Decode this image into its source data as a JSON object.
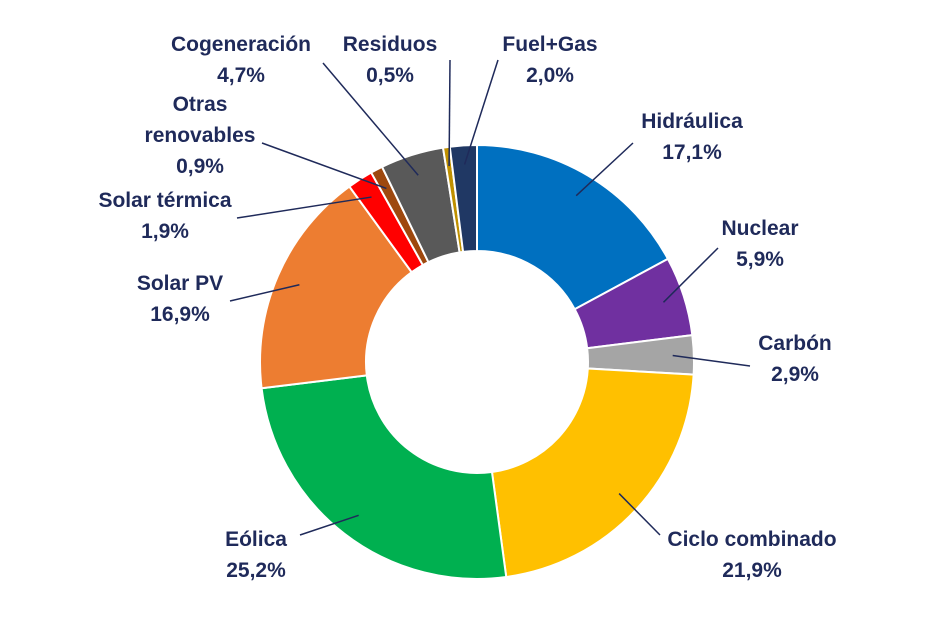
{
  "chart_data": {
    "type": "pie",
    "donut": true,
    "grid": false,
    "legend": "none",
    "slices": [
      {
        "name": "Hidráulica",
        "value": 17.1,
        "label": "17,1%",
        "color": "#0070c0"
      },
      {
        "name": "Nuclear",
        "value": 5.9,
        "label": "5,9%",
        "color": "#7030a0"
      },
      {
        "name": "Carbón",
        "value": 2.9,
        "label": "2,9%",
        "color": "#a5a5a5"
      },
      {
        "name": "Ciclo combinado",
        "value": 21.9,
        "label": "21,9%",
        "color": "#ffc000"
      },
      {
        "name": "Eólica",
        "value": 25.2,
        "label": "25,2%",
        "color": "#00b050"
      },
      {
        "name": "Solar PV",
        "value": 16.9,
        "label": "16,9%",
        "color": "#ed7d31"
      },
      {
        "name": "Solar térmica",
        "value": 1.9,
        "label": "1,9%",
        "color": "#ff0000"
      },
      {
        "name": "Otras renovables",
        "value": 0.9,
        "label": "0,9%",
        "color": "#9e480e"
      },
      {
        "name": "Cogeneración",
        "value": 4.7,
        "label": "4,7%",
        "color": "#595959"
      },
      {
        "name": "Residuos",
        "value": 0.5,
        "label": "0,5%",
        "color": "#bf9000"
      },
      {
        "name": "Fuel+Gas",
        "value": 2.0,
        "label": "2,0%",
        "color": "#203864"
      }
    ]
  }
}
